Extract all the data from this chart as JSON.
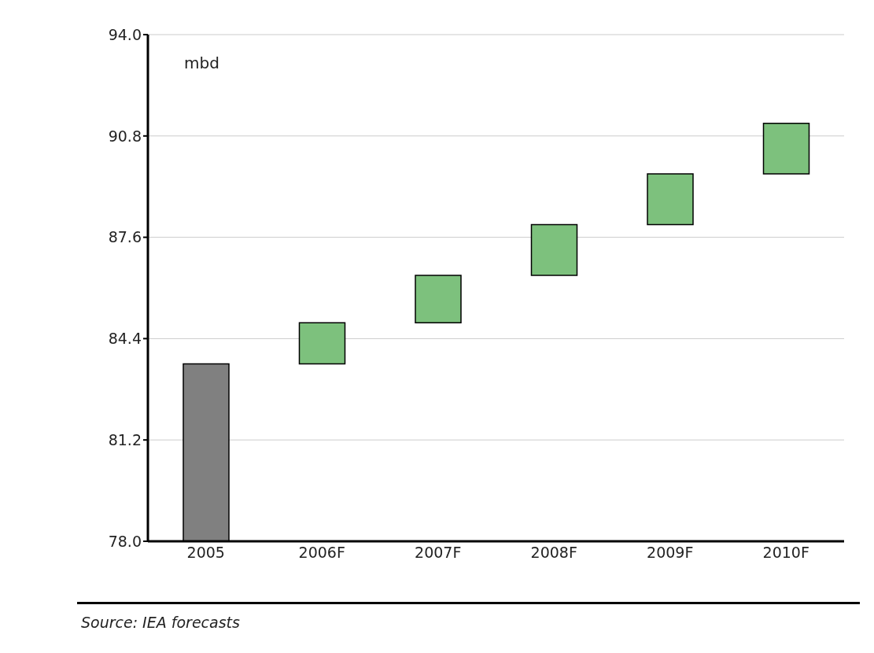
{
  "chart_data": {
    "type": "bar",
    "ylabel": "mbd",
    "annotations": [
      "Source: IEA forecasts"
    ],
    "categories": [
      "2005",
      "2006F",
      "2007F",
      "2008F",
      "2009F",
      "2010F"
    ],
    "base": [
      78,
      83.6,
      84.9,
      86.4,
      88.0,
      89.6
    ],
    "values": [
      5.6,
      1.3,
      1.5,
      1.6,
      1.6,
      1.6
    ],
    "colors": [
      "#808080",
      "#7dc17d",
      "#7dc17d",
      "#7dc17d",
      "#7dc17d",
      "#7dc17d"
    ],
    "ylim": [
      78,
      94
    ],
    "yticks": [
      {
        "value": 78,
        "label": "78.0"
      },
      {
        "value": 81.2,
        "label": "81.2"
      },
      {
        "value": 84.4,
        "label": "84.4"
      },
      {
        "value": 87.6,
        "label": "87.6"
      },
      {
        "value": 90.8,
        "label": "90.8"
      },
      {
        "value": 94,
        "label": "94.0"
      }
    ],
    "grid": "y",
    "legend": false
  }
}
